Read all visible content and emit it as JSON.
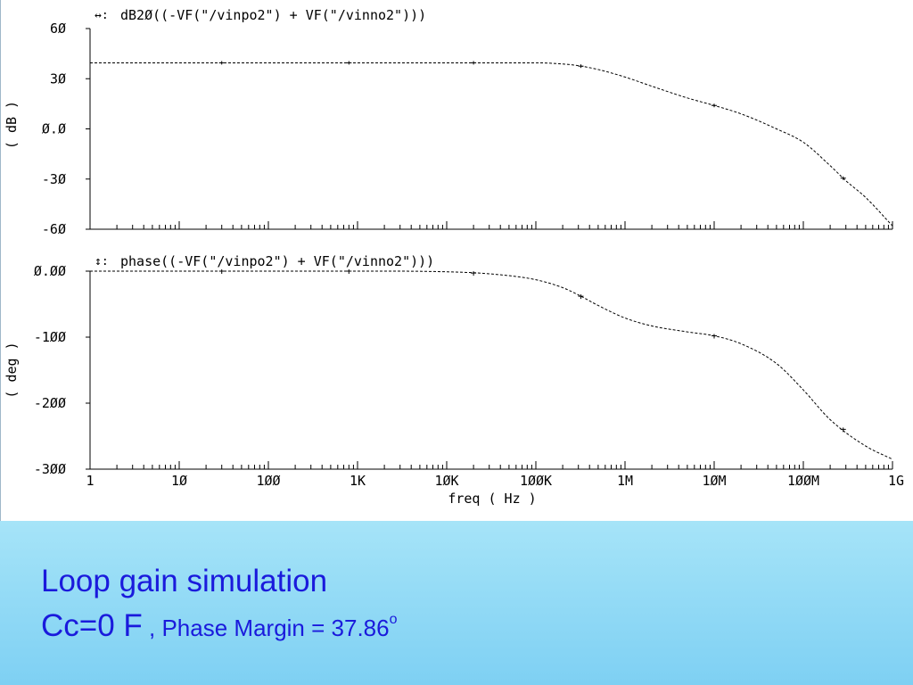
{
  "caption": {
    "title": "Loop gain simulation",
    "cc": "Cc=0 F",
    "sep": " , ",
    "pm_label": "Phase Margin = 37.86",
    "pm_sup": "o"
  },
  "chart_data": [
    {
      "type": "line",
      "title": "dB2Ø((-VF(\"/vinpo2\") + VF(\"/vinno2\")))",
      "title_marker": "↔:",
      "xlabel": "freq ( Hz )",
      "ylabel": "( dB )",
      "xscale": "log",
      "xlim": [
        1,
        1000000000
      ],
      "ylim": [
        -60,
        60
      ],
      "yticks": [
        "6Ø",
        "3Ø",
        "Ø.Ø",
        "-3Ø",
        "-6Ø"
      ],
      "ytick_values": [
        60,
        30,
        0,
        -30,
        -60
      ],
      "series": [
        {
          "x": [
            1,
            10,
            100,
            1000,
            10000,
            100000,
            200000,
            300000,
            500000,
            1000000,
            2000000,
            5000000,
            10000000,
            20000000,
            50000000,
            100000000,
            200000000,
            300000000,
            500000000,
            1000000000
          ],
          "y": [
            39.5,
            39.5,
            39.5,
            39.5,
            39.5,
            39.5,
            38.8,
            37.8,
            35.5,
            31,
            25.5,
            18.5,
            14,
            9,
            0,
            -8,
            -22,
            -31,
            -41,
            -58
          ]
        }
      ],
      "markers_x": [
        30,
        800,
        20000,
        320000,
        10000000,
        280000000
      ]
    },
    {
      "type": "line",
      "title": "phase((-VF(\"/vinpo2\") + VF(\"/vinno2\")))",
      "title_marker": "↕:",
      "xlabel": "freq ( Hz )",
      "ylabel": "( deg )",
      "xscale": "log",
      "xlim": [
        1,
        1000000000
      ],
      "ylim": [
        -300,
        0
      ],
      "yticks": [
        "Ø.ØØ",
        "-1ØØ",
        "-2ØØ",
        "-3ØØ"
      ],
      "ytick_values": [
        0,
        -100,
        -200,
        -300
      ],
      "xticks": [
        "1",
        "1Ø",
        "1ØØ",
        "1K",
        "1ØK",
        "1ØØK",
        "1M",
        "1ØM",
        "1ØØM",
        "1G"
      ],
      "series": [
        {
          "x": [
            1,
            10,
            100,
            1000,
            10000,
            30000,
            100000,
            200000,
            300000,
            500000,
            1000000,
            2000000,
            5000000,
            10000000,
            20000000,
            50000000,
            100000000,
            200000000,
            500000000,
            1000000000
          ],
          "y": [
            0,
            0,
            0,
            0,
            -1,
            -4,
            -13,
            -25,
            -36,
            -52,
            -71,
            -83,
            -92,
            -98,
            -110,
            -140,
            -180,
            -225,
            -265,
            -285
          ]
        }
      ],
      "markers_x": [
        30,
        800,
        20000,
        320000,
        10000000,
        280000000
      ]
    }
  ]
}
